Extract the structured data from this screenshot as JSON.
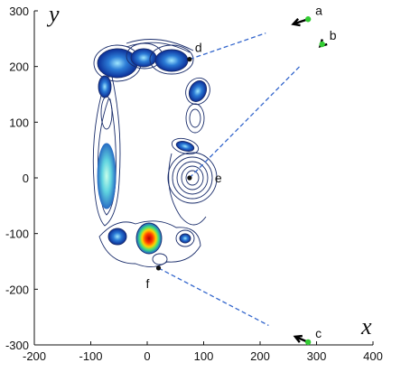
{
  "chart_data": {
    "type": "contour",
    "title": "",
    "xlabel": "x",
    "ylabel": "y",
    "xlim": [
      -200,
      400
    ],
    "ylim": [
      -300,
      300
    ],
    "x_ticks": [
      "-200",
      "-100",
      "0",
      "100",
      "200",
      "300",
      "400"
    ],
    "y_ticks": [
      "300",
      "200",
      "100",
      "0",
      "-100",
      "-200",
      "-300"
    ],
    "grid": false,
    "colormap": "jet",
    "arrow_points": [
      {
        "label": "a",
        "x": 285,
        "y": 285,
        "to_x": 210,
        "to_y": 260
      },
      {
        "label": "b",
        "x": 310,
        "y": 240,
        "to_x": 270,
        "to_y": 200
      },
      {
        "label": "c",
        "x": 285,
        "y": -295,
        "to_x": 215,
        "to_y": -265
      }
    ],
    "marked_points": [
      {
        "label": "d",
        "x": 75,
        "y": 213,
        "link_x": 210,
        "link_y": 260
      },
      {
        "label": "e",
        "x": 75,
        "y": 0,
        "link_x": 270,
        "link_y": 200
      },
      {
        "label": "f",
        "x": 20,
        "y": -162,
        "link_x": 215,
        "link_y": -265
      }
    ]
  },
  "colors": {
    "arrow": "#000000",
    "arrow_tip_dot": "#33cc33",
    "dashed_link": "#3366cc",
    "contour_outer": "#1a2d6b"
  }
}
